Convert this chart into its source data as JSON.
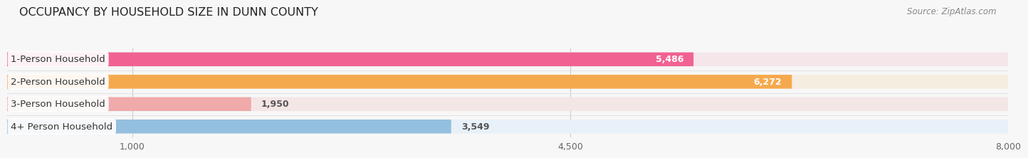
{
  "title": "OCCUPANCY BY HOUSEHOLD SIZE IN DUNN COUNTY",
  "source": "Source: ZipAtlas.com",
  "categories": [
    "1-Person Household",
    "2-Person Household",
    "3-Person Household",
    "4+ Person Household"
  ],
  "values": [
    5486,
    6272,
    1950,
    3549
  ],
  "bar_colors": [
    "#f06292",
    "#f5a94e",
    "#f0aaaa",
    "#94bfdf"
  ],
  "track_colors": [
    "#f5e6ea",
    "#f5ede0",
    "#f5e6e6",
    "#e8f0f8"
  ],
  "xlim": [
    0,
    8000
  ],
  "xticks": [
    1000,
    4500,
    8000
  ],
  "background_color": "#f7f7f7",
  "bar_height": 0.62,
  "title_fontsize": 11.5,
  "label_fontsize": 9.5,
  "value_fontsize": 9,
  "tick_fontsize": 9,
  "source_fontsize": 8.5
}
